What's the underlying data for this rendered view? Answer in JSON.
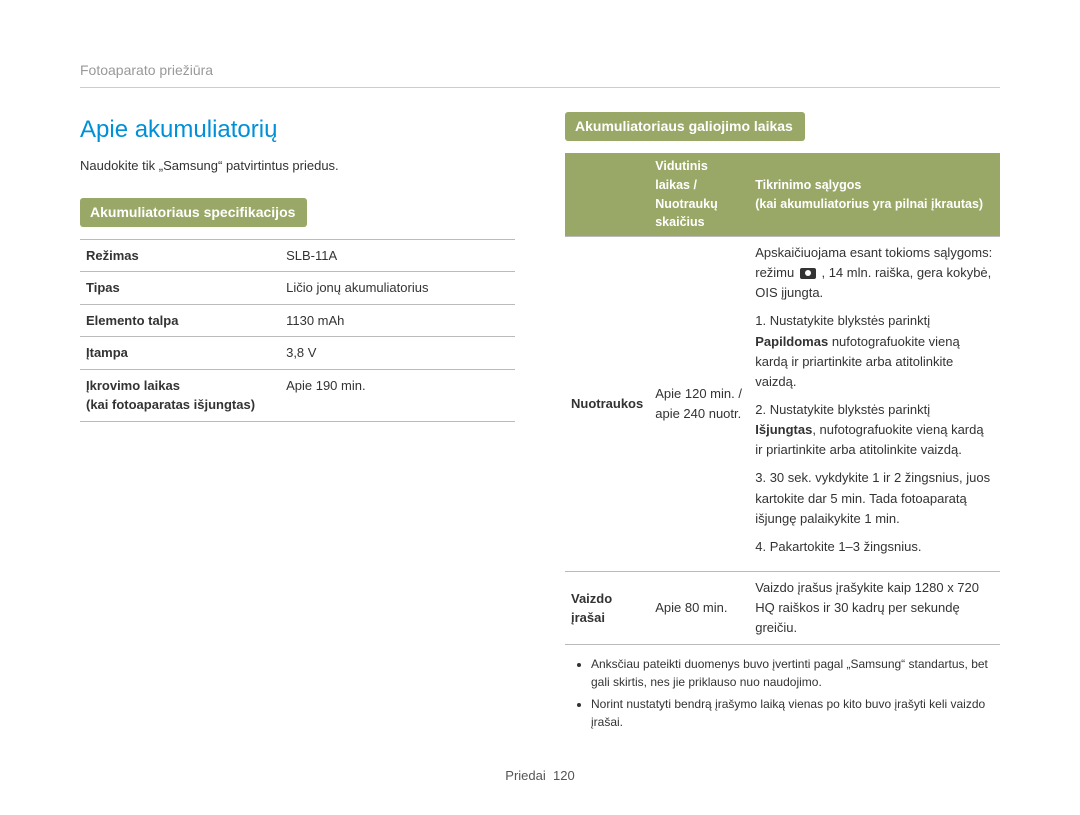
{
  "header": {
    "breadcrumb": "Fotoaparato priežiūra"
  },
  "main": {
    "title": "Apie akumuliatorių",
    "intro": "Naudokite tik „Samsung“ patvirtintus priedus."
  },
  "specs": {
    "heading": "Akumuliatoriaus specifikacijos",
    "rows": [
      {
        "label": "Režimas",
        "value": "SLB-11A"
      },
      {
        "label": "Tipas",
        "value": "Ličio jonų akumuliatorius"
      },
      {
        "label": "Elemento talpa",
        "value": "1130 mAh"
      },
      {
        "label": "Įtampa",
        "value": "3,8 V"
      },
      {
        "label": "Įkrovimo laikas\n(kai fotoaparatas išjungtas)",
        "value": "Apie 190 min."
      }
    ]
  },
  "life": {
    "heading": "Akumuliatoriaus galiojimo laikas",
    "th1": "Vidutinis laikas / Nuotraukų skaičius",
    "th2": "Tikrinimo sąlygos\n(kai akumuliatorius yra pilnai įkrautas)",
    "photos": {
      "row_label": "Nuotraukos",
      "time": "Apie 120 min. / apie 240 nuotr.",
      "cond_intro_a": "Apskaičiuojama esant tokioms sąlygoms: režimu ",
      "cond_intro_b": " , 14 mln. raiška, gera kokybė, OIS įjungta.",
      "s1a": "1. Nustatykite blykstės parinktį ",
      "s1b": "Papildomas",
      "s1c": " nufotografuokite vieną kardą ir priartinkite arba atitolinkite vaizdą.",
      "s2a": "2. Nustatykite blykstės parinktį ",
      "s2b": "Išjungtas",
      "s2c": ", nufotografuokite vieną kardą ir priartinkite arba atitolinkite vaizdą.",
      "s3": "3. 30 sek. vykdykite 1 ir 2 žingsnius, juos kartokite dar 5 min. Tada fotoaparatą išjungę palaikykite 1 min.",
      "s4": "4. Pakartokite 1–3 žingsnius."
    },
    "videos": {
      "row_label": "Vaizdo įrašai",
      "time": "Apie 80 min.",
      "cond": "Vaizdo įrašus įrašykite kaip 1280 x 720 HQ raiškos ir 30 kadrų per sekundę greičiu."
    },
    "notes": [
      "Anksčiau pateikti duomenys buvo įvertinti pagal „Samsung“ standartus, bet gali skirtis, nes jie priklauso nuo naudojimo.",
      "Norint nustatyti bendrą įrašymo laiką vienas po kito buvo įrašyti keli vaizdo įrašai."
    ]
  },
  "footer": {
    "label": "Priedai",
    "page": "120"
  }
}
